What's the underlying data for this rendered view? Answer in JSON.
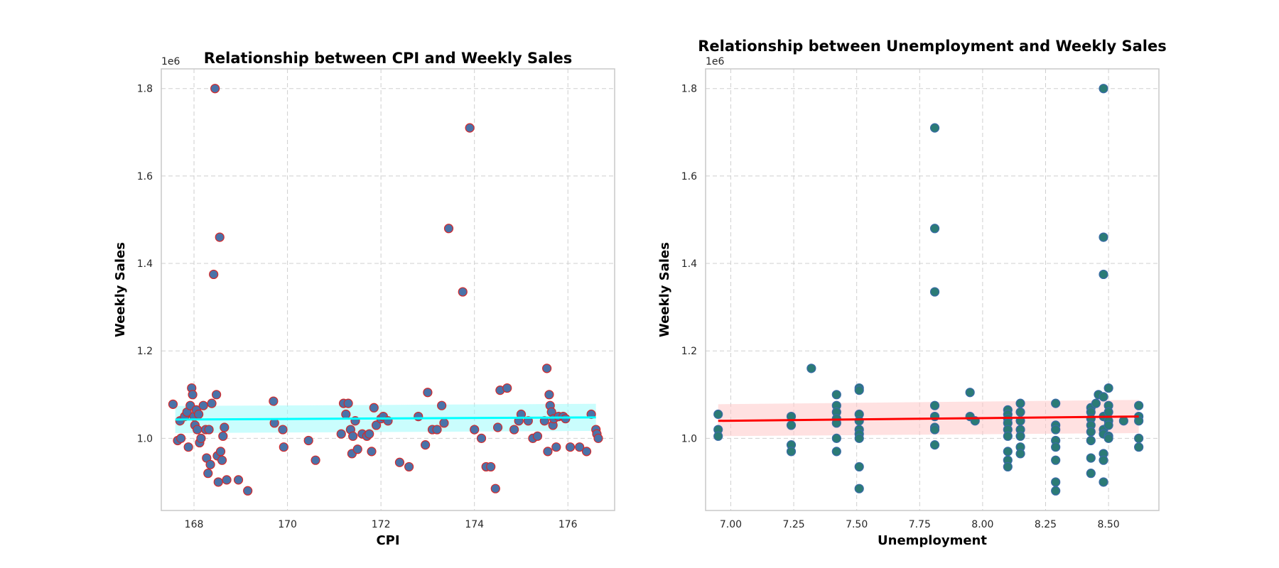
{
  "chart_data": [
    {
      "type": "scatter",
      "title": "Relationship between CPI and Weekly Sales",
      "xlabel": "CPI",
      "ylabel": "Weekly Sales",
      "offset_label": "1e6",
      "xlim": [
        167.3,
        177.0
      ],
      "ylim": [
        0.835,
        1.845
      ],
      "xticks": [
        168,
        170,
        172,
        174,
        176
      ],
      "xtick_labels": [
        "168",
        "170",
        "172",
        "174",
        "176"
      ],
      "yticks": [
        1.0,
        1.2,
        1.4,
        1.6,
        1.8
      ],
      "ytick_labels": [
        "1.0",
        "1.2",
        "1.4",
        "1.6",
        "1.8"
      ],
      "grid": true,
      "colors": {
        "point_fill": "#4a72a8",
        "point_edge": "#d62728",
        "line": "#00ffff",
        "band": "#9ffcfc"
      },
      "regression": {
        "x": [
          167.6,
          176.6
        ],
        "y": [
          1.043,
          1.048
        ],
        "ci_lower": [
          1.012,
          1.017
        ],
        "ci_upper": [
          1.074,
          1.079
        ]
      },
      "points": [
        [
          167.55,
          1.078
        ],
        [
          167.65,
          0.995
        ],
        [
          167.7,
          1.04
        ],
        [
          167.72,
          1.0
        ],
        [
          167.8,
          1.05
        ],
        [
          167.85,
          1.06
        ],
        [
          167.88,
          0.98
        ],
        [
          167.92,
          1.075
        ],
        [
          167.95,
          1.115
        ],
        [
          167.97,
          1.1
        ],
        [
          168.0,
          1.05
        ],
        [
          168.02,
          1.03
        ],
        [
          168.05,
          1.065
        ],
        [
          168.07,
          1.02
        ],
        [
          168.1,
          1.055
        ],
        [
          168.12,
          0.99
        ],
        [
          168.15,
          1.0
        ],
        [
          168.2,
          1.075
        ],
        [
          168.25,
          1.02
        ],
        [
          168.27,
          0.955
        ],
        [
          168.3,
          0.92
        ],
        [
          168.32,
          1.02
        ],
        [
          168.35,
          0.94
        ],
        [
          168.38,
          1.08
        ],
        [
          168.42,
          1.375
        ],
        [
          168.45,
          1.8
        ],
        [
          168.48,
          1.1
        ],
        [
          168.5,
          0.96
        ],
        [
          168.52,
          0.9
        ],
        [
          168.55,
          1.46
        ],
        [
          168.57,
          0.97
        ],
        [
          168.6,
          0.95
        ],
        [
          168.62,
          1.005
        ],
        [
          168.65,
          1.025
        ],
        [
          168.7,
          0.905
        ],
        [
          168.95,
          0.905
        ],
        [
          169.15,
          0.88
        ],
        [
          169.7,
          1.085
        ],
        [
          169.72,
          1.035
        ],
        [
          169.9,
          1.02
        ],
        [
          169.92,
          0.98
        ],
        [
          170.45,
          0.995
        ],
        [
          170.6,
          0.95
        ],
        [
          171.15,
          1.01
        ],
        [
          171.2,
          1.08
        ],
        [
          171.25,
          1.055
        ],
        [
          171.3,
          1.08
        ],
        [
          171.35,
          1.02
        ],
        [
          171.38,
          0.965
        ],
        [
          171.4,
          1.005
        ],
        [
          171.45,
          1.04
        ],
        [
          171.5,
          0.975
        ],
        [
          171.6,
          1.01
        ],
        [
          171.7,
          1.005
        ],
        [
          171.75,
          1.01
        ],
        [
          171.8,
          0.97
        ],
        [
          171.85,
          1.07
        ],
        [
          171.9,
          1.03
        ],
        [
          172.0,
          1.045
        ],
        [
          172.05,
          1.05
        ],
        [
          172.15,
          1.04
        ],
        [
          172.4,
          0.945
        ],
        [
          172.6,
          0.935
        ],
        [
          172.8,
          1.05
        ],
        [
          172.95,
          0.985
        ],
        [
          173.0,
          1.105
        ],
        [
          173.1,
          1.02
        ],
        [
          173.2,
          1.02
        ],
        [
          173.3,
          1.075
        ],
        [
          173.35,
          1.035
        ],
        [
          173.45,
          1.48
        ],
        [
          173.75,
          1.335
        ],
        [
          173.9,
          1.71
        ],
        [
          174.0,
          1.02
        ],
        [
          174.15,
          1.0
        ],
        [
          174.25,
          0.935
        ],
        [
          174.35,
          0.935
        ],
        [
          174.45,
          0.885
        ],
        [
          174.5,
          1.025
        ],
        [
          174.55,
          1.11
        ],
        [
          174.7,
          1.115
        ],
        [
          174.85,
          1.02
        ],
        [
          174.95,
          1.04
        ],
        [
          175.0,
          1.055
        ],
        [
          175.15,
          1.04
        ],
        [
          175.25,
          1.0
        ],
        [
          175.35,
          1.005
        ],
        [
          175.5,
          1.04
        ],
        [
          175.55,
          1.16
        ],
        [
          175.57,
          0.97
        ],
        [
          175.6,
          1.1
        ],
        [
          175.62,
          1.075
        ],
        [
          175.65,
          1.06
        ],
        [
          175.68,
          1.03
        ],
        [
          175.7,
          1.045
        ],
        [
          175.75,
          0.98
        ],
        [
          175.8,
          1.05
        ],
        [
          175.9,
          1.05
        ],
        [
          175.95,
          1.045
        ],
        [
          176.05,
          0.98
        ],
        [
          176.25,
          0.98
        ],
        [
          176.4,
          0.97
        ],
        [
          176.5,
          1.055
        ],
        [
          176.6,
          1.02
        ],
        [
          176.62,
          1.01
        ],
        [
          176.65,
          1.0
        ]
      ]
    },
    {
      "type": "scatter",
      "title": "Relationship between Unemployment and Weekly Sales",
      "xlabel": "Unemployment",
      "ylabel": "Weekly Sales",
      "offset_label": "1e6",
      "xlim": [
        6.9,
        8.7
      ],
      "ylim": [
        0.835,
        1.845
      ],
      "xticks": [
        7.0,
        7.25,
        7.5,
        7.75,
        8.0,
        8.25,
        8.5
      ],
      "xtick_labels": [
        "7.00",
        "7.25",
        "7.50",
        "7.75",
        "8.00",
        "8.25",
        "8.50"
      ],
      "yticks": [
        1.0,
        1.2,
        1.4,
        1.6,
        1.8
      ],
      "ytick_labels": [
        "1.0",
        "1.2",
        "1.4",
        "1.6",
        "1.8"
      ],
      "grid": true,
      "colors": {
        "point_fill": "#2b7b76",
        "point_edge": "#3a6aa8",
        "line": "#ff0000",
        "band": "#ffc8c8"
      },
      "regression": {
        "x": [
          6.95,
          8.62
        ],
        "y": [
          1.04,
          1.05
        ],
        "ci_lower": [
          1.005,
          1.012
        ],
        "ci_upper": [
          1.078,
          1.088
        ]
      },
      "points": [
        [
          6.95,
          1.055
        ],
        [
          6.95,
          1.02
        ],
        [
          6.95,
          1.005
        ],
        [
          7.24,
          1.05
        ],
        [
          7.24,
          1.03
        ],
        [
          7.24,
          0.985
        ],
        [
          7.24,
          0.97
        ],
        [
          7.32,
          1.16
        ],
        [
          7.42,
          1.1
        ],
        [
          7.42,
          1.075
        ],
        [
          7.42,
          1.06
        ],
        [
          7.42,
          1.045
        ],
        [
          7.42,
          1.035
        ],
        [
          7.42,
          1.0
        ],
        [
          7.42,
          0.97
        ],
        [
          7.51,
          1.115
        ],
        [
          7.51,
          1.11
        ],
        [
          7.51,
          1.055
        ],
        [
          7.51,
          1.04
        ],
        [
          7.51,
          1.02
        ],
        [
          7.51,
          1.01
        ],
        [
          7.51,
          1.0
        ],
        [
          7.51,
          0.935
        ],
        [
          7.51,
          0.885
        ],
        [
          7.81,
          1.71
        ],
        [
          7.81,
          1.48
        ],
        [
          7.81,
          1.335
        ],
        [
          7.81,
          1.075
        ],
        [
          7.81,
          1.05
        ],
        [
          7.81,
          1.025
        ],
        [
          7.81,
          1.02
        ],
        [
          7.81,
          0.985
        ],
        [
          7.95,
          1.105
        ],
        [
          7.95,
          1.05
        ],
        [
          7.97,
          1.04
        ],
        [
          8.1,
          1.065
        ],
        [
          8.1,
          1.055
        ],
        [
          8.1,
          1.045
        ],
        [
          8.1,
          1.035
        ],
        [
          8.1,
          1.02
        ],
        [
          8.1,
          1.005
        ],
        [
          8.1,
          0.97
        ],
        [
          8.1,
          0.95
        ],
        [
          8.1,
          0.935
        ],
        [
          8.15,
          1.08
        ],
        [
          8.15,
          1.06
        ],
        [
          8.15,
          1.04
        ],
        [
          8.15,
          1.02
        ],
        [
          8.15,
          1.005
        ],
        [
          8.15,
          0.98
        ],
        [
          8.15,
          0.965
        ],
        [
          8.29,
          1.08
        ],
        [
          8.29,
          1.03
        ],
        [
          8.29,
          1.02
        ],
        [
          8.29,
          0.995
        ],
        [
          8.29,
          0.98
        ],
        [
          8.29,
          0.95
        ],
        [
          8.29,
          0.9
        ],
        [
          8.29,
          0.88
        ],
        [
          8.43,
          1.07
        ],
        [
          8.43,
          1.06
        ],
        [
          8.43,
          1.045
        ],
        [
          8.43,
          1.03
        ],
        [
          8.43,
          1.015
        ],
        [
          8.43,
          0.995
        ],
        [
          8.43,
          0.955
        ],
        [
          8.43,
          0.92
        ],
        [
          8.45,
          1.08
        ],
        [
          8.46,
          1.1
        ],
        [
          8.48,
          1.8
        ],
        [
          8.48,
          1.46
        ],
        [
          8.48,
          1.375
        ],
        [
          8.48,
          1.095
        ],
        [
          8.48,
          1.05
        ],
        [
          8.48,
          1.02
        ],
        [
          8.48,
          1.01
        ],
        [
          8.48,
          0.965
        ],
        [
          8.48,
          0.95
        ],
        [
          8.48,
          0.9
        ],
        [
          8.5,
          1.115
        ],
        [
          8.5,
          1.075
        ],
        [
          8.5,
          1.06
        ],
        [
          8.5,
          1.04
        ],
        [
          8.5,
          1.03
        ],
        [
          8.5,
          1.005
        ],
        [
          8.5,
          1.0
        ],
        [
          8.56,
          1.04
        ],
        [
          8.62,
          1.075
        ],
        [
          8.62,
          1.05
        ],
        [
          8.62,
          1.04
        ],
        [
          8.62,
          1.0
        ],
        [
          8.62,
          0.98
        ]
      ]
    }
  ]
}
